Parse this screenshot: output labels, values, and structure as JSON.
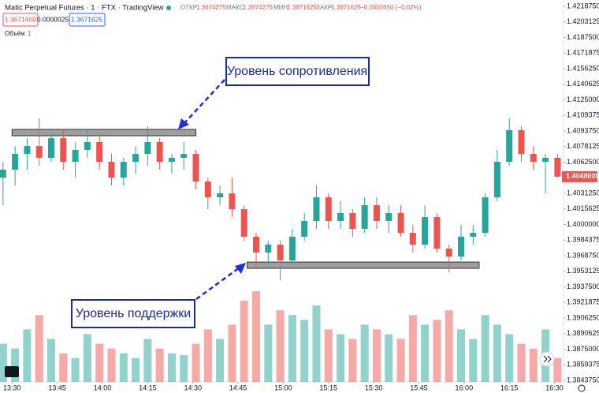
{
  "header": {
    "title": "Matic Perpetual Futures · 1 · FTX · TradingView",
    "ohlc": [
      "ОТКР",
      "1.3674275",
      "МАКС",
      "1.3674275",
      "МИН",
      "1.3671625",
      "ЗАКР",
      "1.3671625",
      "−0.0002650 (−0.02%)"
    ],
    "boxes": [
      "1.3671600",
      "0.0000025",
      "1.3671625"
    ],
    "volume_label": "Объём",
    "volume_value": "1"
  },
  "chart_data": {
    "type": "candlestick",
    "x": [
      "13:27",
      "13:31",
      "13:35",
      "13:39",
      "13:43",
      "13:47",
      "13:51",
      "13:55",
      "13:59",
      "14:03",
      "14:07",
      "14:11",
      "14:15",
      "14:19",
      "14:23",
      "14:27",
      "14:31",
      "14:35",
      "14:39",
      "14:43",
      "14:47",
      "14:51",
      "14:55",
      "14:59",
      "15:03",
      "15:07",
      "15:11",
      "15:15",
      "15:19",
      "15:23",
      "15:27",
      "15:31",
      "15:35",
      "15:39",
      "15:43",
      "15:47",
      "15:51",
      "15:55",
      "15:59",
      "16:03",
      "16:07",
      "16:11",
      "16:15",
      "16:19",
      "16:23",
      "16:27",
      "16:31"
    ],
    "open": [
      1.40471,
      1.4055,
      1.40708,
      1.40787,
      1.40669,
      1.40866,
      1.40629,
      1.40748,
      1.40827,
      1.40629,
      1.40471,
      1.40629,
      1.40708,
      1.40827,
      1.40629,
      1.40669,
      1.40708,
      1.40431,
      1.40273,
      1.40313,
      1.40154,
      1.39878,
      1.39719,
      1.39798,
      1.3964,
      1.39878,
      1.40036,
      1.40273,
      1.40036,
      1.40115,
      1.39957,
      1.40194,
      1.40036,
      1.40115,
      1.39917,
      1.39798,
      1.40075,
      1.39759,
      1.3968,
      1.39878,
      1.39917,
      1.40273,
      1.40629,
      1.40946,
      1.40708,
      1.40629,
      1.40669
    ],
    "high": [
      1.40629,
      1.40787,
      1.40866,
      1.41064,
      1.40906,
      1.40946,
      1.40827,
      1.40946,
      1.40906,
      1.40708,
      1.40669,
      1.40787,
      1.40985,
      1.40866,
      1.40708,
      1.40827,
      1.40748,
      1.40471,
      1.40392,
      1.40471,
      1.40194,
      1.39917,
      1.39838,
      1.39838,
      1.39957,
      1.40115,
      1.40392,
      1.40313,
      1.40234,
      1.40154,
      1.40273,
      1.40273,
      1.40194,
      1.40194,
      1.39996,
      1.40194,
      1.40115,
      1.39798,
      1.39996,
      1.39996,
      1.40313,
      1.40748,
      1.41064,
      1.40985,
      1.40787,
      1.40708,
      1.40708
    ],
    "low": [
      1.40194,
      1.40392,
      1.4055,
      1.4059,
      1.40629,
      1.4055,
      1.40471,
      1.40669,
      1.4055,
      1.40392,
      1.40392,
      1.4051,
      1.4059,
      1.4055,
      1.4051,
      1.4055,
      1.40352,
      1.40154,
      1.40194,
      1.40075,
      1.39838,
      1.39561,
      1.39601,
      1.39442,
      1.39601,
      1.39838,
      1.39957,
      1.39957,
      1.39957,
      1.39878,
      1.39917,
      1.39957,
      1.39917,
      1.39878,
      1.39719,
      1.39759,
      1.39719,
      1.39521,
      1.3964,
      1.39798,
      1.39878,
      1.40234,
      1.4059,
      1.40629,
      1.4055,
      1.40313,
      1.40471
    ],
    "close": [
      1.4055,
      1.40708,
      1.40787,
      1.40669,
      1.40866,
      1.40629,
      1.40748,
      1.40827,
      1.40629,
      1.40471,
      1.40629,
      1.40708,
      1.40827,
      1.40629,
      1.40669,
      1.40708,
      1.40431,
      1.40273,
      1.40313,
      1.40154,
      1.39878,
      1.39719,
      1.39798,
      1.3964,
      1.39878,
      1.40036,
      1.40273,
      1.40036,
      1.40115,
      1.39957,
      1.40194,
      1.40036,
      1.40115,
      1.39917,
      1.39798,
      1.40075,
      1.39759,
      1.3968,
      1.39878,
      1.39917,
      1.40273,
      1.40629,
      1.40946,
      1.40708,
      1.40629,
      1.40669,
      1.4048
    ],
    "volume": [
      40,
      35,
      55,
      70,
      45,
      30,
      25,
      50,
      40,
      35,
      30,
      25,
      45,
      35,
      30,
      28,
      40,
      55,
      45,
      60,
      85,
      95,
      60,
      75,
      70,
      65,
      80,
      55,
      50,
      45,
      60,
      55,
      50,
      45,
      70,
      60,
      65,
      75,
      55,
      45,
      70,
      60,
      50,
      40,
      35,
      55,
      25
    ],
    "up_color": "#26a69a",
    "down_color": "#ef5350",
    "last_label": "1.4048000",
    "xlim": [
      "13:26",
      "16:33"
    ],
    "xticks": [
      "13:30",
      "13:45",
      "14:00",
      "14:15",
      "14:30",
      "14:45",
      "15:00",
      "15:15",
      "15:30",
      "15:45",
      "16:00",
      "16:15",
      "16:30"
    ],
    "ylim": [
      1.38422,
      1.42251
    ],
    "yticks": [
      {
        "value": 1.421875,
        "label": "1.4218750"
      },
      {
        "value": 1.4203125,
        "label": "1.4203125"
      },
      {
        "value": 1.41875,
        "label": "1.4187500"
      },
      {
        "value": 1.4171875,
        "label": "1.4171875"
      },
      {
        "value": 1.415625,
        "label": "1.4156250"
      },
      {
        "value": 1.4140625,
        "label": "1.4140625"
      },
      {
        "value": 1.4125,
        "label": "1.4125000"
      },
      {
        "value": 1.4109375,
        "label": "1.4109375"
      },
      {
        "value": 1.409375,
        "label": "1.4093750"
      },
      {
        "value": 1.4078125,
        "label": "1.4078125"
      },
      {
        "value": 1.40625,
        "label": "1.4062500"
      },
      {
        "value": 1.403125,
        "label": "1.4031250"
      },
      {
        "value": 1.4015625,
        "label": "1.4015625"
      },
      {
        "value": 1.4,
        "label": "1.4000000"
      },
      {
        "value": 1.3984375,
        "label": "1.3984375"
      },
      {
        "value": 1.396875,
        "label": "1.3968750"
      },
      {
        "value": 1.3953125,
        "label": "1.3953125"
      },
      {
        "value": 1.39375,
        "label": "1.3937500"
      },
      {
        "value": 1.3921875,
        "label": "1.3921875"
      },
      {
        "value": 1.390625,
        "label": "1.3906250"
      },
      {
        "value": 1.3890625,
        "label": "1.3890625"
      },
      {
        "value": 1.3875,
        "label": "1.3875000"
      },
      {
        "value": 1.3859375,
        "label": "1.3859375"
      },
      {
        "value": 1.384375,
        "label": "1.3843750"
      }
    ],
    "levels": [
      {
        "label": "Уровень сопротивления",
        "top": 1.40954,
        "bottom": 1.4089,
        "start": "13:30",
        "end": "14:31"
      },
      {
        "label": "Уровень поддержки",
        "top": 1.39624,
        "bottom": 1.39561,
        "start": "14:48",
        "end": "16:05"
      }
    ]
  }
}
